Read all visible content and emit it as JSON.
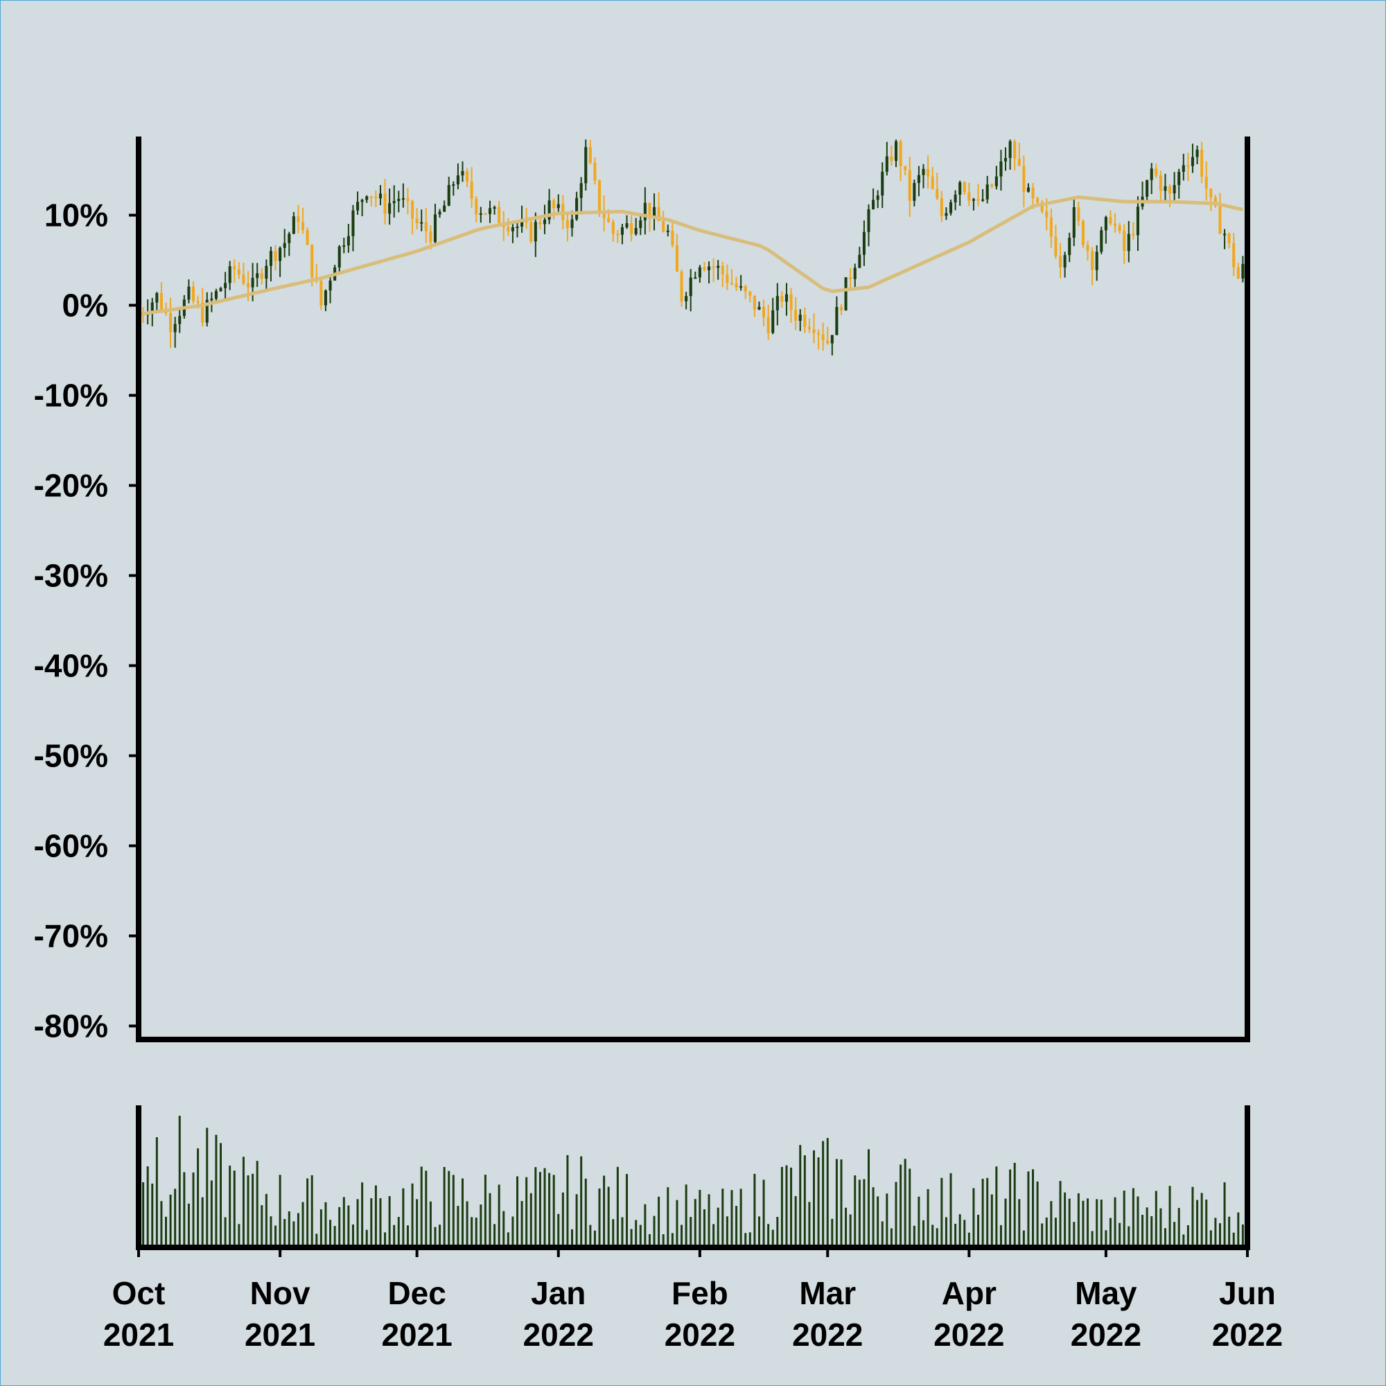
{
  "chart_data": {
    "type": "candlestick",
    "x_range": [
      "2021-10-01",
      "2022-06-01"
    ],
    "y_axis": {
      "range_pct": [
        -81.5,
        18.5
      ],
      "tick_values": [
        10,
        0,
        -10,
        -20,
        -30,
        -40,
        -50,
        -60,
        -70,
        -80
      ],
      "tick_labels": [
        "10%",
        "0%",
        "-10%",
        "-20%",
        "-30%",
        "-40%",
        "-50%",
        "-60%",
        "-70%",
        "-80%"
      ]
    },
    "x_axis": {
      "ticks": [
        {
          "date": "2021-10-01",
          "month": "Oct",
          "year": "2021"
        },
        {
          "date": "2021-11-01",
          "month": "Nov",
          "year": "2021"
        },
        {
          "date": "2021-12-01",
          "month": "Dec",
          "year": "2021"
        },
        {
          "date": "2022-01-01",
          "month": "Jan",
          "year": "2022"
        },
        {
          "date": "2022-02-01",
          "month": "Feb",
          "year": "2022"
        },
        {
          "date": "2022-03-01",
          "month": "Mar",
          "year": "2022"
        },
        {
          "date": "2022-04-01",
          "month": "Apr",
          "year": "2022"
        },
        {
          "date": "2022-05-01",
          "month": "May",
          "year": "2022"
        },
        {
          "date": "2022-06-01",
          "month": "Jun",
          "year": "2022"
        }
      ]
    },
    "close_pct_anchors": [
      [
        "2021-10-01",
        -1
      ],
      [
        "2021-10-05",
        1
      ],
      [
        "2021-10-08",
        -2
      ],
      [
        "2021-10-12",
        1
      ],
      [
        "2021-10-15",
        -1
      ],
      [
        "2021-10-19",
        2
      ],
      [
        "2021-10-22",
        4
      ],
      [
        "2021-10-26",
        2
      ],
      [
        "2021-10-29",
        5
      ],
      [
        "2021-11-02",
        7
      ],
      [
        "2021-11-05",
        10
      ],
      [
        "2021-11-08",
        4
      ],
      [
        "2021-11-10",
        0
      ],
      [
        "2021-11-13",
        5
      ],
      [
        "2021-11-17",
        10
      ],
      [
        "2021-11-20",
        13
      ],
      [
        "2021-11-24",
        11
      ],
      [
        "2021-11-27",
        12
      ],
      [
        "2021-12-01",
        9
      ],
      [
        "2021-12-04",
        8
      ],
      [
        "2021-12-07",
        11
      ],
      [
        "2021-12-10",
        15
      ],
      [
        "2021-12-14",
        11
      ],
      [
        "2021-12-18",
        10
      ],
      [
        "2021-12-22",
        9
      ],
      [
        "2021-12-26",
        8
      ],
      [
        "2021-12-30",
        11
      ],
      [
        "2022-01-04",
        9
      ],
      [
        "2022-01-07",
        17
      ],
      [
        "2022-01-10",
        11
      ],
      [
        "2022-01-13",
        8
      ],
      [
        "2022-01-17",
        9
      ],
      [
        "2022-01-20",
        11
      ],
      [
        "2022-01-25",
        8
      ],
      [
        "2022-01-28",
        1
      ],
      [
        "2022-02-01",
        5
      ],
      [
        "2022-02-05",
        4
      ],
      [
        "2022-02-09",
        2
      ],
      [
        "2022-02-13",
        0
      ],
      [
        "2022-02-16",
        -2
      ],
      [
        "2022-02-19",
        1
      ],
      [
        "2022-02-22",
        -1
      ],
      [
        "2022-02-26",
        -2
      ],
      [
        "2022-03-01",
        -4
      ],
      [
        "2022-03-05",
        2
      ],
      [
        "2022-03-09",
        8
      ],
      [
        "2022-03-12",
        13
      ],
      [
        "2022-03-16",
        18
      ],
      [
        "2022-03-19",
        12
      ],
      [
        "2022-03-22",
        15
      ],
      [
        "2022-03-26",
        10
      ],
      [
        "2022-03-30",
        14
      ],
      [
        "2022-04-03",
        11
      ],
      [
        "2022-04-07",
        14
      ],
      [
        "2022-04-10",
        18
      ],
      [
        "2022-04-14",
        12
      ],
      [
        "2022-04-18",
        9
      ],
      [
        "2022-04-21",
        5
      ],
      [
        "2022-04-24",
        10
      ],
      [
        "2022-04-28",
        5
      ],
      [
        "2022-05-02",
        10
      ],
      [
        "2022-05-05",
        6
      ],
      [
        "2022-05-08",
        10
      ],
      [
        "2022-05-11",
        15
      ],
      [
        "2022-05-15",
        12
      ],
      [
        "2022-05-18",
        16
      ],
      [
        "2022-05-21",
        17
      ],
      [
        "2022-05-24",
        11
      ],
      [
        "2022-05-27",
        8
      ],
      [
        "2022-05-30",
        3
      ],
      [
        "2022-06-01",
        5
      ]
    ],
    "moving_average_pct_anchors": [
      [
        "2021-10-01",
        -1
      ],
      [
        "2021-10-15",
        0
      ],
      [
        "2021-11-01",
        2
      ],
      [
        "2021-11-10",
        3
      ],
      [
        "2021-12-01",
        6
      ],
      [
        "2021-12-15",
        8.5
      ],
      [
        "2022-01-01",
        10.2
      ],
      [
        "2022-01-15",
        10.4
      ],
      [
        "2022-01-25",
        9.5
      ],
      [
        "2022-02-01",
        8.3
      ],
      [
        "2022-02-15",
        6.5
      ],
      [
        "2022-03-01",
        1.5
      ],
      [
        "2022-03-10",
        2
      ],
      [
        "2022-04-01",
        7
      ],
      [
        "2022-04-15",
        11
      ],
      [
        "2022-04-25",
        12
      ],
      [
        "2022-05-05",
        11.5
      ],
      [
        "2022-05-15",
        11.5
      ],
      [
        "2022-05-25",
        11.3
      ],
      [
        "2022-06-01",
        10.5
      ]
    ],
    "volume_profile": [
      0.9,
      0.6,
      0.4,
      0.35,
      0.45,
      0.4,
      0.5,
      0.35,
      0.3,
      0.6,
      0.55,
      0.4,
      0.45,
      0.3,
      0.35,
      0.4
    ],
    "grid": false,
    "legend": "none"
  },
  "colors": {
    "background": "#d3dce0",
    "up_candle": "#1b3d12",
    "down_candle": "#f0a820",
    "moving_average": "#d9bd7a",
    "volume": "#1b3d12",
    "axis": "#000000",
    "frame_border": "#4aa8d8"
  }
}
